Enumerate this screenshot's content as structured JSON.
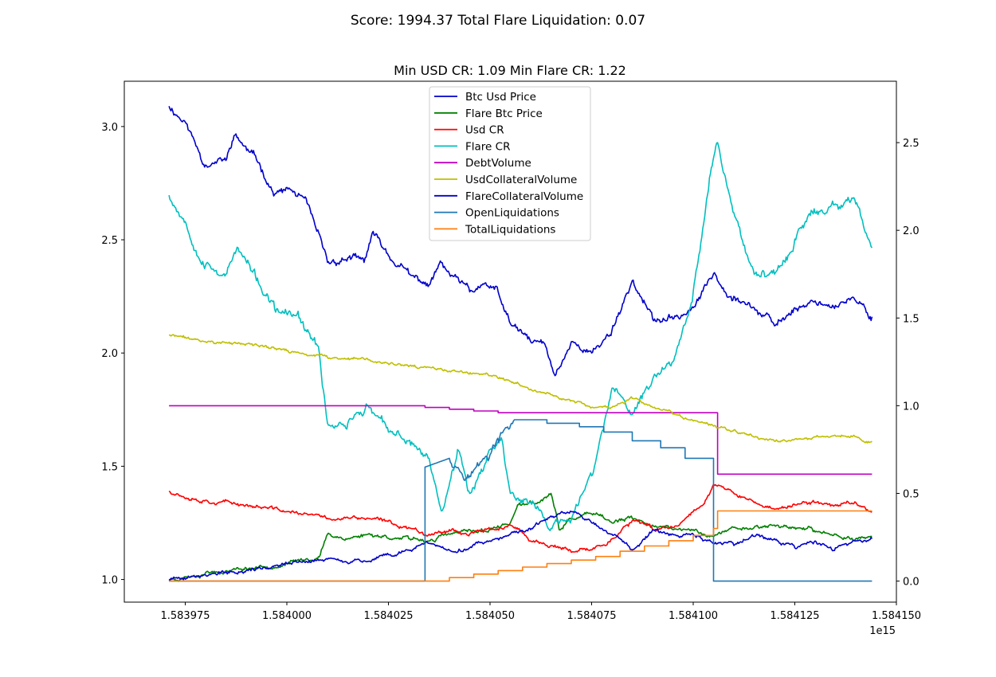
{
  "suptitle": "Score: 1994.37 Total Flare Liquidation: 0.07",
  "chart_data": {
    "type": "line",
    "title": "Min USD CR: 1.09 Min Flare CR: 1.22",
    "xlabel": "",
    "ylabel": "",
    "x_offset_label": "1e15",
    "xlim": [
      1.58396,
      1.58415
    ],
    "ylim_left": [
      0.9,
      3.2
    ],
    "ylim_right": [
      -0.12,
      2.85
    ],
    "x_ticks": [
      "1.583975",
      "1.584000",
      "1.584025",
      "1.584050",
      "1.584075",
      "1.584100",
      "1.584125",
      "1.584150"
    ],
    "y_ticks_left": [
      "1.0",
      "1.5",
      "2.0",
      "2.5",
      "3.0"
    ],
    "y_ticks_right": [
      "0.0",
      "0.5",
      "1.0",
      "1.5",
      "2.0",
      "2.5"
    ],
    "legend_position": "upper center",
    "grid": false,
    "series": [
      {
        "name": "Btc Usd Price",
        "axis": "left",
        "color": "#0000cc",
        "noise": 0.022,
        "seed": 11,
        "points": [
          [
            1.583971,
            3.09
          ],
          [
            1.583975,
            3.02
          ],
          [
            1.58398,
            2.83
          ],
          [
            1.583985,
            2.85
          ],
          [
            1.583987,
            2.96
          ],
          [
            1.583993,
            2.84
          ],
          [
            1.583997,
            2.7
          ],
          [
            1.584001,
            2.72
          ],
          [
            1.584005,
            2.66
          ],
          [
            1.58401,
            2.4
          ],
          [
            1.584015,
            2.42
          ],
          [
            1.584019,
            2.4
          ],
          [
            1.584021,
            2.53
          ],
          [
            1.584025,
            2.43
          ],
          [
            1.58403,
            2.35
          ],
          [
            1.584035,
            2.3
          ],
          [
            1.584038,
            2.4
          ],
          [
            1.58404,
            2.35
          ],
          [
            1.584045,
            2.27
          ],
          [
            1.584048,
            2.3
          ],
          [
            1.584052,
            2.27
          ],
          [
            1.584055,
            2.13
          ],
          [
            1.58406,
            2.05
          ],
          [
            1.584063,
            2.05
          ],
          [
            1.584066,
            1.9
          ],
          [
            1.58407,
            2.05
          ],
          [
            1.584075,
            2.0
          ],
          [
            1.58408,
            2.1
          ],
          [
            1.584085,
            2.32
          ],
          [
            1.58409,
            2.15
          ],
          [
            1.584095,
            2.15
          ],
          [
            1.5841,
            2.2
          ],
          [
            1.584105,
            2.35
          ],
          [
            1.58411,
            2.25
          ],
          [
            1.584115,
            2.2
          ],
          [
            1.58412,
            2.12
          ],
          [
            1.584125,
            2.2
          ],
          [
            1.58413,
            2.23
          ],
          [
            1.584135,
            2.21
          ],
          [
            1.58414,
            2.23
          ],
          [
            1.584144,
            2.16
          ]
        ]
      },
      {
        "name": "Flare Btc Price",
        "axis": "left",
        "color": "#008000",
        "noise": 0.012,
        "seed": 23,
        "points": [
          [
            1.583971,
            1.0
          ],
          [
            1.58398,
            1.03
          ],
          [
            1.58399,
            1.05
          ],
          [
            1.584,
            1.07
          ],
          [
            1.584008,
            1.1
          ],
          [
            1.58401,
            1.2
          ],
          [
            1.584015,
            1.18
          ],
          [
            1.58402,
            1.2
          ],
          [
            1.58403,
            1.18
          ],
          [
            1.584035,
            1.17
          ],
          [
            1.58404,
            1.2
          ],
          [
            1.58405,
            1.22
          ],
          [
            1.584055,
            1.25
          ],
          [
            1.584057,
            1.33
          ],
          [
            1.584062,
            1.34
          ],
          [
            1.584065,
            1.38
          ],
          [
            1.584067,
            1.22
          ],
          [
            1.58407,
            1.27
          ],
          [
            1.584075,
            1.29
          ],
          [
            1.58408,
            1.25
          ],
          [
            1.584085,
            1.27
          ],
          [
            1.58409,
            1.24
          ],
          [
            1.584095,
            1.22
          ],
          [
            1.5841,
            1.22
          ],
          [
            1.584105,
            1.19
          ],
          [
            1.58411,
            1.23
          ],
          [
            1.584115,
            1.23
          ],
          [
            1.58412,
            1.24
          ],
          [
            1.584125,
            1.23
          ],
          [
            1.58413,
            1.21
          ],
          [
            1.584135,
            1.2
          ],
          [
            1.58414,
            1.18
          ],
          [
            1.584144,
            1.19
          ]
        ]
      },
      {
        "name": "Usd CR",
        "axis": "left",
        "color": "#ff0000",
        "noise": 0.012,
        "seed": 37,
        "points": [
          [
            1.583971,
            1.39
          ],
          [
            1.58398,
            1.35
          ],
          [
            1.58399,
            1.33
          ],
          [
            1.584,
            1.3
          ],
          [
            1.58401,
            1.27
          ],
          [
            1.58402,
            1.27
          ],
          [
            1.58403,
            1.23
          ],
          [
            1.584035,
            1.2
          ],
          [
            1.58404,
            1.22
          ],
          [
            1.584045,
            1.2
          ],
          [
            1.58405,
            1.22
          ],
          [
            1.584055,
            1.24
          ],
          [
            1.58406,
            1.17
          ],
          [
            1.584065,
            1.15
          ],
          [
            1.58407,
            1.12
          ],
          [
            1.584075,
            1.13
          ],
          [
            1.58408,
            1.18
          ],
          [
            1.584085,
            1.26
          ],
          [
            1.58409,
            1.22
          ],
          [
            1.584095,
            1.23
          ],
          [
            1.5841,
            1.3
          ],
          [
            1.584103,
            1.35
          ],
          [
            1.584105,
            1.42
          ],
          [
            1.58411,
            1.38
          ],
          [
            1.584115,
            1.34
          ],
          [
            1.58412,
            1.31
          ],
          [
            1.584125,
            1.33
          ],
          [
            1.58413,
            1.34
          ],
          [
            1.584135,
            1.33
          ],
          [
            1.58414,
            1.34
          ],
          [
            1.584144,
            1.3
          ]
        ]
      },
      {
        "name": "Flare CR",
        "axis": "right",
        "color": "#00bfbf",
        "noise": 0.035,
        "seed": 53,
        "points": [
          [
            1.583971,
            2.2
          ],
          [
            1.583975,
            2.05
          ],
          [
            1.58398,
            1.8
          ],
          [
            1.583985,
            1.75
          ],
          [
            1.583988,
            1.9
          ],
          [
            1.583993,
            1.7
          ],
          [
            1.583997,
            1.55
          ],
          [
            1.584003,
            1.5
          ],
          [
            1.584008,
            1.3
          ],
          [
            1.58401,
            0.9
          ],
          [
            1.584015,
            0.9
          ],
          [
            1.58402,
            1.0
          ],
          [
            1.584025,
            0.85
          ],
          [
            1.58403,
            0.8
          ],
          [
            1.584035,
            0.7
          ],
          [
            1.584038,
            0.4
          ],
          [
            1.584042,
            0.75
          ],
          [
            1.584045,
            0.5
          ],
          [
            1.58405,
            0.75
          ],
          [
            1.584053,
            0.8
          ],
          [
            1.584055,
            0.5
          ],
          [
            1.58406,
            0.45
          ],
          [
            1.584065,
            0.3
          ],
          [
            1.58407,
            0.35
          ],
          [
            1.584075,
            0.6
          ],
          [
            1.58408,
            1.1
          ],
          [
            1.584085,
            0.95
          ],
          [
            1.58409,
            1.15
          ],
          [
            1.584095,
            1.25
          ],
          [
            1.5841,
            1.65
          ],
          [
            1.584104,
            2.3
          ],
          [
            1.584106,
            2.5
          ],
          [
            1.58411,
            2.1
          ],
          [
            1.584115,
            1.75
          ],
          [
            1.58412,
            1.75
          ],
          [
            1.584125,
            1.95
          ],
          [
            1.58413,
            2.1
          ],
          [
            1.584135,
            2.15
          ],
          [
            1.58414,
            2.15
          ],
          [
            1.584144,
            1.9
          ]
        ]
      },
      {
        "name": "DebtVolume",
        "axis": "right",
        "color": "#bf00bf",
        "step": true,
        "points": [
          [
            1.583971,
            1.0
          ],
          [
            1.584028,
            1.0
          ],
          [
            1.584034,
            0.99
          ],
          [
            1.58404,
            0.98
          ],
          [
            1.584046,
            0.97
          ],
          [
            1.584052,
            0.96
          ],
          [
            1.584056,
            0.96
          ],
          [
            1.584105,
            0.96
          ],
          [
            1.584106,
            0.61
          ],
          [
            1.584144,
            0.61
          ]
        ]
      },
      {
        "name": "UsdCollateralVolume",
        "axis": "left",
        "color": "#bfbf00",
        "noise": 0.009,
        "seed": 71,
        "points": [
          [
            1.583971,
            2.08
          ],
          [
            1.58398,
            2.05
          ],
          [
            1.58399,
            2.04
          ],
          [
            1.584,
            2.01
          ],
          [
            1.58401,
            1.98
          ],
          [
            1.58402,
            1.97
          ],
          [
            1.58403,
            1.94
          ],
          [
            1.58404,
            1.92
          ],
          [
            1.58405,
            1.9
          ],
          [
            1.58406,
            1.84
          ],
          [
            1.58407,
            1.79
          ],
          [
            1.584075,
            1.76
          ],
          [
            1.58408,
            1.76
          ],
          [
            1.584085,
            1.8
          ],
          [
            1.58409,
            1.76
          ],
          [
            1.584095,
            1.73
          ],
          [
            1.5841,
            1.7
          ],
          [
            1.58411,
            1.66
          ],
          [
            1.58412,
            1.61
          ],
          [
            1.58413,
            1.63
          ],
          [
            1.58414,
            1.63
          ],
          [
            1.584144,
            1.61
          ]
        ]
      },
      {
        "name": "FlareCollateralVolume",
        "axis": "left",
        "color": "#0000cc",
        "noise": 0.012,
        "seed": 89,
        "points": [
          [
            1.583971,
            1.0
          ],
          [
            1.58398,
            1.02
          ],
          [
            1.58399,
            1.04
          ],
          [
            1.584,
            1.07
          ],
          [
            1.58401,
            1.09
          ],
          [
            1.58402,
            1.08
          ],
          [
            1.584025,
            1.11
          ],
          [
            1.58403,
            1.13
          ],
          [
            1.584035,
            1.16
          ],
          [
            1.58404,
            1.13
          ],
          [
            1.584045,
            1.14
          ],
          [
            1.58405,
            1.17
          ],
          [
            1.584055,
            1.2
          ],
          [
            1.58406,
            1.22
          ],
          [
            1.584065,
            1.28
          ],
          [
            1.58407,
            1.3
          ],
          [
            1.584075,
            1.25
          ],
          [
            1.58408,
            1.2
          ],
          [
            1.584085,
            1.13
          ],
          [
            1.58409,
            1.22
          ],
          [
            1.584095,
            1.2
          ],
          [
            1.5841,
            1.2
          ],
          [
            1.584105,
            1.16
          ],
          [
            1.58411,
            1.15
          ],
          [
            1.584115,
            1.19
          ],
          [
            1.58412,
            1.18
          ],
          [
            1.584125,
            1.14
          ],
          [
            1.58413,
            1.17
          ],
          [
            1.584135,
            1.14
          ],
          [
            1.58414,
            1.17
          ],
          [
            1.584144,
            1.18
          ]
        ]
      },
      {
        "name": "OpenLiquidations",
        "axis": "right",
        "color": "#1f77b4",
        "noise": 0.04,
        "seed": 97,
        "noise_range": [
          1.584035,
          1.584057
        ],
        "points": [
          [
            1.583971,
            0.0
          ],
          [
            1.584034,
            0.0
          ],
          [
            1.584034,
            0.65
          ],
          [
            1.58404,
            0.7
          ],
          [
            1.584045,
            0.6
          ],
          [
            1.58405,
            0.72
          ],
          [
            1.584056,
            0.92
          ],
          [
            1.584064,
            0.92
          ],
          [
            1.584064,
            0.9
          ],
          [
            1.584072,
            0.9
          ],
          [
            1.584072,
            0.88
          ],
          [
            1.584078,
            0.88
          ],
          [
            1.584078,
            0.85
          ],
          [
            1.584085,
            0.85
          ],
          [
            1.584085,
            0.8
          ],
          [
            1.584092,
            0.8
          ],
          [
            1.584092,
            0.76
          ],
          [
            1.584098,
            0.76
          ],
          [
            1.584098,
            0.7
          ],
          [
            1.584105,
            0.7
          ],
          [
            1.584105,
            0.0
          ],
          [
            1.584144,
            0.0
          ]
        ]
      },
      {
        "name": "TotalLiquidations",
        "axis": "right",
        "color": "#ff7f0e",
        "step": true,
        "points": [
          [
            1.583971,
            0.0
          ],
          [
            1.584034,
            0.0
          ],
          [
            1.58404,
            0.02
          ],
          [
            1.584046,
            0.04
          ],
          [
            1.584052,
            0.06
          ],
          [
            1.584058,
            0.08
          ],
          [
            1.584064,
            0.1
          ],
          [
            1.58407,
            0.12
          ],
          [
            1.584076,
            0.14
          ],
          [
            1.584082,
            0.17
          ],
          [
            1.584088,
            0.2
          ],
          [
            1.584094,
            0.23
          ],
          [
            1.5841,
            0.26
          ],
          [
            1.584105,
            0.3
          ],
          [
            1.584106,
            0.4
          ],
          [
            1.584144,
            0.4
          ]
        ]
      }
    ]
  }
}
